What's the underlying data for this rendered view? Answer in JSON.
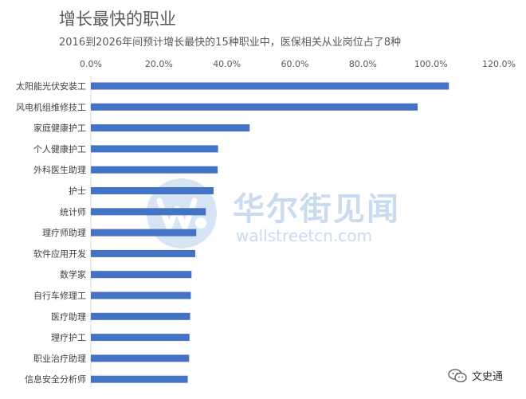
{
  "header": {
    "title": "增长最快的职业",
    "subtitle": "2016到2026年间预计增长最快的15种职业中，医保相关从业岗位占了8种"
  },
  "watermark": {
    "brand": "华尔街见闻",
    "url": "wallstreetcn.com",
    "logo_icon": "wallstreetcn-logo-icon"
  },
  "badge": {
    "label": "文史通",
    "icon": "wechat-icon"
  },
  "colors": {
    "bar": "#4472c4",
    "axis_text": "#595959",
    "watermark": "#c9dbef"
  },
  "chart_data": {
    "type": "bar",
    "orientation": "horizontal",
    "title": "增长最快的职业",
    "subtitle": "2016到2026年间预计增长最快的15种职业中，医保相关从业岗位占了8种",
    "xlabel": "",
    "ylabel": "",
    "xlim": [
      0,
      120
    ],
    "x_ticks": [
      "0.0%",
      "20.0%",
      "40.0%",
      "60.0%",
      "80.0%",
      "100.0%",
      "120.0%"
    ],
    "x_axis_position": "top",
    "gridlines": false,
    "legend": "none",
    "categories": [
      "太阳能光伏安装工",
      "风电机组维修技工",
      "家庭健康护工",
      "个人健康护工",
      "外科医生助理",
      "护士",
      "统计师",
      "理疗师助理",
      "软件应用开发",
      "数学家",
      "自行车修理工",
      "医疗助理",
      "理疗护工",
      "职业治疗助理",
      "信息安全分析师"
    ],
    "values": [
      105.3,
      96.1,
      46.7,
      37.4,
      37.3,
      36.1,
      33.8,
      31.0,
      30.7,
      29.6,
      29.4,
      29.2,
      29.0,
      28.9,
      28.5
    ]
  }
}
